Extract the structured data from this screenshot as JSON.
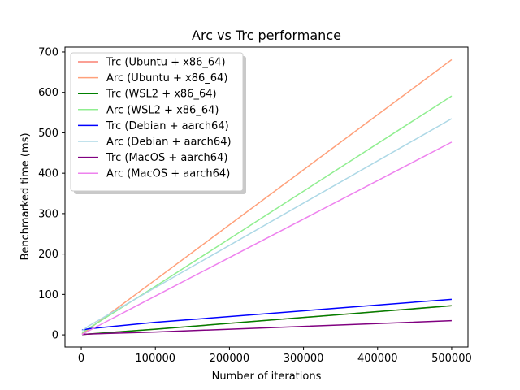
{
  "chart_data": {
    "type": "line",
    "title": "Arc vs Trc performance",
    "xlabel": "Number of iterations",
    "ylabel": "Benchmarked time (ms)",
    "xlim": [
      -22000,
      522000
    ],
    "ylim": [
      -30,
      712
    ],
    "xticks": [
      0,
      100000,
      200000,
      300000,
      400000,
      500000
    ],
    "xtick_labels": [
      "0",
      "100000",
      "200000",
      "300000",
      "400000",
      "500000"
    ],
    "yticks": [
      0,
      100,
      200,
      300,
      400,
      500,
      600,
      700
    ],
    "ytick_labels": [
      "0",
      "100",
      "200",
      "300",
      "400",
      "500",
      "600",
      "700"
    ],
    "grid": false,
    "legend_position": "upper-left",
    "series": [
      {
        "name": "Trc (Ubuntu + x86_64)",
        "color": "#fa8072",
        "x": [
          1000,
          10000,
          100000,
          500000
        ],
        "y": [
          1,
          2,
          14,
          72
        ]
      },
      {
        "name": "Arc (Ubuntu + x86_64)",
        "color": "#ffa07a",
        "x": [
          1000,
          10000,
          100000,
          500000
        ],
        "y": [
          2,
          14,
          136,
          681
        ]
      },
      {
        "name": "Trc (WSL2 + x86_64)",
        "color": "#008000",
        "x": [
          1000,
          10000,
          100000,
          500000
        ],
        "y": [
          1,
          2,
          14,
          72
        ]
      },
      {
        "name": "Arc (WSL2 + x86_64)",
        "color": "#90ee90",
        "x": [
          1000,
          10000,
          100000,
          500000
        ],
        "y": [
          5,
          16,
          120,
          591
        ]
      },
      {
        "name": "Trc (Debian + aarch64)",
        "color": "#0000ff",
        "x": [
          1000,
          10000,
          100000,
          500000
        ],
        "y": [
          12,
          15,
          31,
          88
        ]
      },
      {
        "name": "Arc (Debian + aarch64)",
        "color": "#add8e6",
        "x": [
          1000,
          10000,
          100000,
          500000
        ],
        "y": [
          10,
          22,
          117,
          535
        ]
      },
      {
        "name": "Trc (MacOS + aarch64)",
        "color": "#800080",
        "x": [
          1000,
          10000,
          100000,
          500000
        ],
        "y": [
          1,
          2,
          7,
          35
        ]
      },
      {
        "name": "Arc (MacOS + aarch64)",
        "color": "#ee82ee",
        "x": [
          1000,
          10000,
          100000,
          500000
        ],
        "y": [
          1,
          10,
          96,
          477
        ]
      }
    ]
  }
}
